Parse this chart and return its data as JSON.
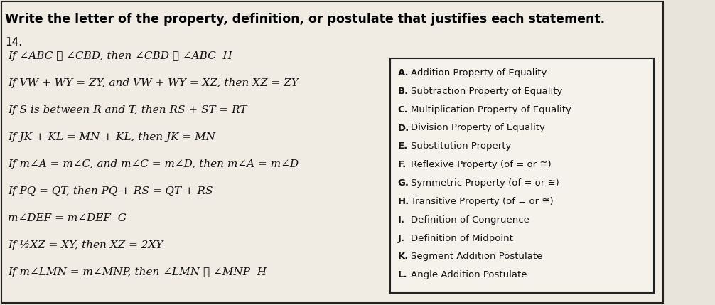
{
  "title": "Write the letter of the property, definition, or postulate that justifies each statement.",
  "number": "14.",
  "statements": [
    "If ∠ABC ≅ ∠CBD, then ∠CBD ≅ ∠ABC  H",
    "If VW + WY = ZY, and VW + WY = XZ, then XZ = ZY",
    "If S is between R and T, then RS + ST = RT",
    "If JK + KL = MN + KL, then JK = MN",
    "If m∠A = m∠C, and m∠C = m∠D, then m∠A = m∠D",
    "If PQ = QT, then PQ + RS = QT + RS",
    "m∠DEF = m∠DEF  G",
    "If ½XZ = XY, then XZ = 2XY",
    "If m∠LMN = m∠MNP, then ∠LMN ≅ ∠MNP  H"
  ],
  "options_letters": [
    "A.",
    "B.",
    "C.",
    "D.",
    "E.",
    "F.",
    "G.",
    "H.",
    "I.",
    "J.",
    "K.",
    "L."
  ],
  "options_text": [
    "Addition Property of Equality",
    "Subtraction Property of Equality",
    "Multiplication Property of Equality",
    "Division Property of Equality",
    "Substitution Property",
    "Reflexive Property (of = or ≅)",
    "Symmetric Property (of = or ≅)",
    "Transitive Property (of = or ≅)",
    "Definition of Congruence",
    "Definition of Midpoint",
    "Segment Addition Postulate",
    "Angle Addition Postulate"
  ],
  "bg_color": "#e8e4dc",
  "content_bg": "#f0ece4",
  "box_bg": "#f5f2ec",
  "title_bg": "#f5f2ec",
  "border_color": "#222222",
  "title_color": "#000000",
  "text_color": "#111111",
  "title_fontsize": 12.5,
  "number_fontsize": 11,
  "stmt_fontsize": 11,
  "opt_letter_fontsize": 9.5,
  "opt_text_fontsize": 9.5
}
